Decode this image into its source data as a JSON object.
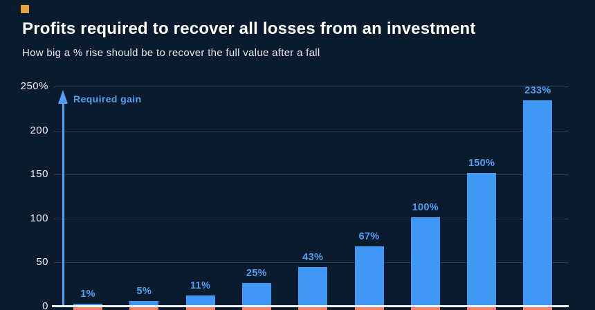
{
  "header": {
    "title": "Profits required to recover all losses from an investment",
    "subtitle": "How big a % rise should be to recover the full value after a fall"
  },
  "brand": {
    "mark": "yellow-square-logo",
    "color": "#E2A33D"
  },
  "colors": {
    "background": "#0A1B2D",
    "bar": "#3F99F4",
    "value_label": "#4FA0F5",
    "negative_bar": "#F5826B",
    "gridline": "#2C3E52",
    "axis_line": "#F2F5F7",
    "tick_text": "#EFF2F4",
    "title_text": "#FFFFFF",
    "subtitle_text": "#E6EAEE",
    "arrow": "#4FA0F5"
  },
  "chart_data": {
    "type": "bar",
    "title": "Profits required to recover all losses from an investment",
    "subtitle": "How big a % rise should be to recover the full value after a fall",
    "ylabel": "Required gain",
    "ylim": [
      0,
      250
    ],
    "grid": true,
    "legend_position": "none",
    "y_ticks": [
      {
        "label": "250%",
        "value": 250
      },
      {
        "label": "200",
        "value": 200
      },
      {
        "label": "150",
        "value": 150
      },
      {
        "label": "100",
        "value": 100
      },
      {
        "label": "50",
        "value": 50
      },
      {
        "label": "0",
        "value": 0
      }
    ],
    "series": [
      {
        "name": "Required gain",
        "color": "#3F99F4",
        "values": [
          1,
          5,
          11,
          25,
          43,
          67,
          100,
          150,
          233
        ],
        "labels": [
          "1%",
          "5%",
          "11%",
          "25%",
          "43%",
          "67%",
          "100%",
          "150%",
          "233%"
        ]
      },
      {
        "name": "Loss bars below zero (clipped at bottom edge of image)",
        "color": "#F5826B",
        "clipped": true
      }
    ],
    "annotations": [
      "Required gain"
    ]
  }
}
